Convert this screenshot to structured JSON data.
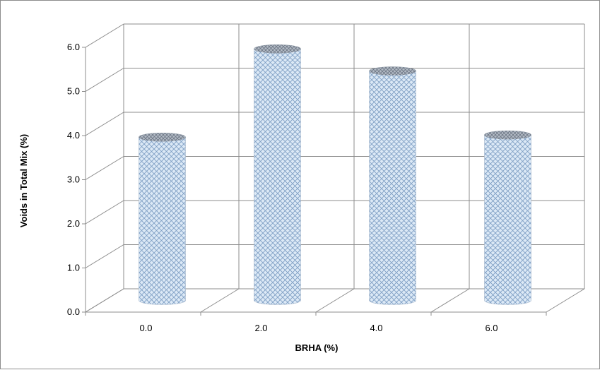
{
  "chart_data": {
    "type": "bar",
    "style": "3d-cylinder",
    "categories": [
      "0.0",
      "2.0",
      "4.0",
      "6.0"
    ],
    "values": [
      3.7,
      5.7,
      5.2,
      3.75
    ],
    "title": "",
    "xlabel": "BRHA (%)",
    "ylabel": "Voids in Total Mix (%)",
    "ylim": [
      0,
      6
    ],
    "yticks": [
      "0.0",
      "1.0",
      "2.0",
      "3.0",
      "4.0",
      "5.0",
      "6.0"
    ],
    "grid": true,
    "legend": "none",
    "colors": {
      "bar_fill": "#dce9f6",
      "bar_pattern": "#7f9fc4",
      "bar_top": "#8a95a3",
      "grid": "#8c8c8c",
      "axis": "#8c8c8c"
    }
  }
}
